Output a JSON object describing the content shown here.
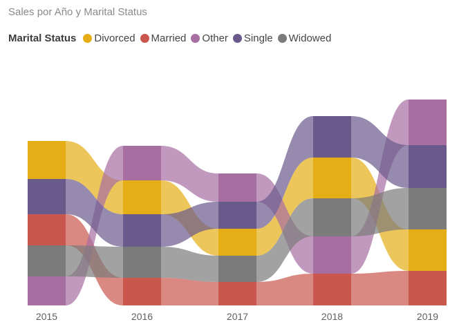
{
  "chart_data": {
    "type": "ribbon",
    "title": "Sales por Año y Marital Status",
    "legend_title": "Marital Status",
    "legend_position": "top-left",
    "categories": [
      "2015",
      "2016",
      "2017",
      "2018",
      "2019"
    ],
    "series": [
      {
        "name": "Divorced",
        "color": "#E6AE16",
        "values": [
          55,
          49,
          39,
          59,
          60
        ]
      },
      {
        "name": "Married",
        "color": "#C9574D",
        "values": [
          45,
          40,
          34,
          46,
          50
        ]
      },
      {
        "name": "Other",
        "color": "#A76EA2",
        "values": [
          42,
          50,
          41,
          54,
          66
        ]
      },
      {
        "name": "Single",
        "color": "#6A5A8C",
        "values": [
          51,
          47,
          39,
          60,
          62
        ]
      },
      {
        "name": "Widowed",
        "color": "#7B7B7B",
        "values": [
          45,
          45,
          38,
          55,
          60
        ]
      }
    ],
    "rank_order_bottom_to_top": [
      [
        "Other",
        "Widowed",
        "Married",
        "Single",
        "Divorced"
      ],
      [
        "Married",
        "Widowed",
        "Single",
        "Divorced",
        "Other"
      ],
      [
        "Married",
        "Widowed",
        "Divorced",
        "Single",
        "Other"
      ],
      [
        "Married",
        "Other",
        "Widowed",
        "Divorced",
        "Single"
      ],
      [
        "Married",
        "Divorced",
        "Widowed",
        "Single",
        "Other"
      ]
    ],
    "grid": false
  }
}
